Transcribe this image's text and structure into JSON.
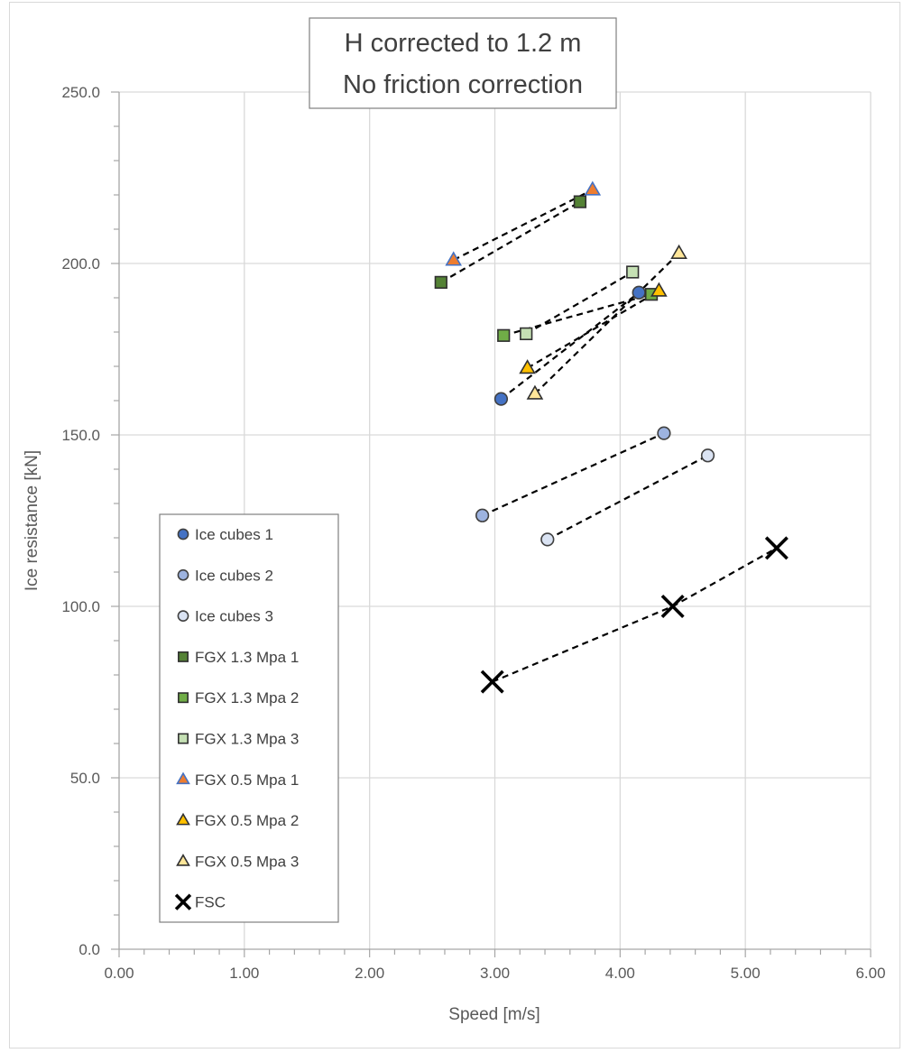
{
  "chart_data": {
    "type": "scatter",
    "title": [
      "H corrected to 1.2 m",
      "No friction correction"
    ],
    "xlabel": "Speed [m/s]",
    "ylabel": "Ice resistance [kN]",
    "xlim": [
      0,
      6
    ],
    "ylim": [
      0,
      250
    ],
    "xticks": [
      0,
      1,
      2,
      3,
      4,
      5,
      6
    ],
    "xtick_labels": [
      "0.00",
      "1.00",
      "2.00",
      "3.00",
      "4.00",
      "5.00",
      "6.00"
    ],
    "yticks": [
      0,
      50,
      100,
      150,
      200,
      250
    ],
    "ytick_labels": [
      "0.0",
      "50.0",
      "100.0",
      "150.0",
      "200.0",
      "250.0"
    ],
    "grid": true,
    "legend_position": "bottom-left",
    "series": [
      {
        "name": "Ice cubes 1",
        "marker": "circle",
        "fill": "#4472c4",
        "stroke": "#404040",
        "x": [
          3.05,
          4.15
        ],
        "y": [
          160.5,
          191.5
        ]
      },
      {
        "name": "Ice cubes 2",
        "marker": "circle",
        "fill": "#9db3e0",
        "stroke": "#404040",
        "x": [
          2.9,
          4.35
        ],
        "y": [
          126.5,
          150.5
        ]
      },
      {
        "name": "Ice cubes 3",
        "marker": "circle",
        "fill": "#dae3f3",
        "stroke": "#404040",
        "x": [
          3.42,
          4.7
        ],
        "y": [
          119.5,
          144.0
        ]
      },
      {
        "name": "FGX 1.3 Mpa 1",
        "marker": "square",
        "fill": "#548235",
        "stroke": "#303030",
        "x": [
          2.57,
          3.68
        ],
        "y": [
          194.5,
          218.0
        ]
      },
      {
        "name": "FGX 1.3 Mpa 2",
        "marker": "square",
        "fill": "#70ad47",
        "stroke": "#303030",
        "x": [
          3.07,
          4.25
        ],
        "y": [
          179.0,
          191.0
        ]
      },
      {
        "name": "FGX 1.3 Mpa 3",
        "marker": "square",
        "fill": "#c5e0b4",
        "stroke": "#303030",
        "x": [
          3.25,
          4.1
        ],
        "y": [
          179.5,
          197.5
        ]
      },
      {
        "name": "FGX 0.5 Mpa 1",
        "marker": "triangle",
        "fill": "#ed7d31",
        "stroke": "#4472c4",
        "x": [
          2.67,
          3.78
        ],
        "y": [
          201.0,
          221.5
        ]
      },
      {
        "name": "FGX 0.5 Mpa 2",
        "marker": "triangle",
        "fill": "#ffc000",
        "stroke": "#303030",
        "x": [
          3.26,
          4.31
        ],
        "y": [
          169.5,
          192.0
        ]
      },
      {
        "name": "FGX 0.5 Mpa 3",
        "marker": "triangle",
        "fill": "#ffe699",
        "stroke": "#303030",
        "x": [
          3.32,
          4.47
        ],
        "y": [
          162.0,
          203.0
        ]
      },
      {
        "name": "FSC",
        "marker": "x",
        "fill": "#000000",
        "stroke": "#000000",
        "x": [
          2.98,
          4.42,
          5.25
        ],
        "y": [
          78.0,
          100.0,
          117.0
        ]
      }
    ]
  }
}
